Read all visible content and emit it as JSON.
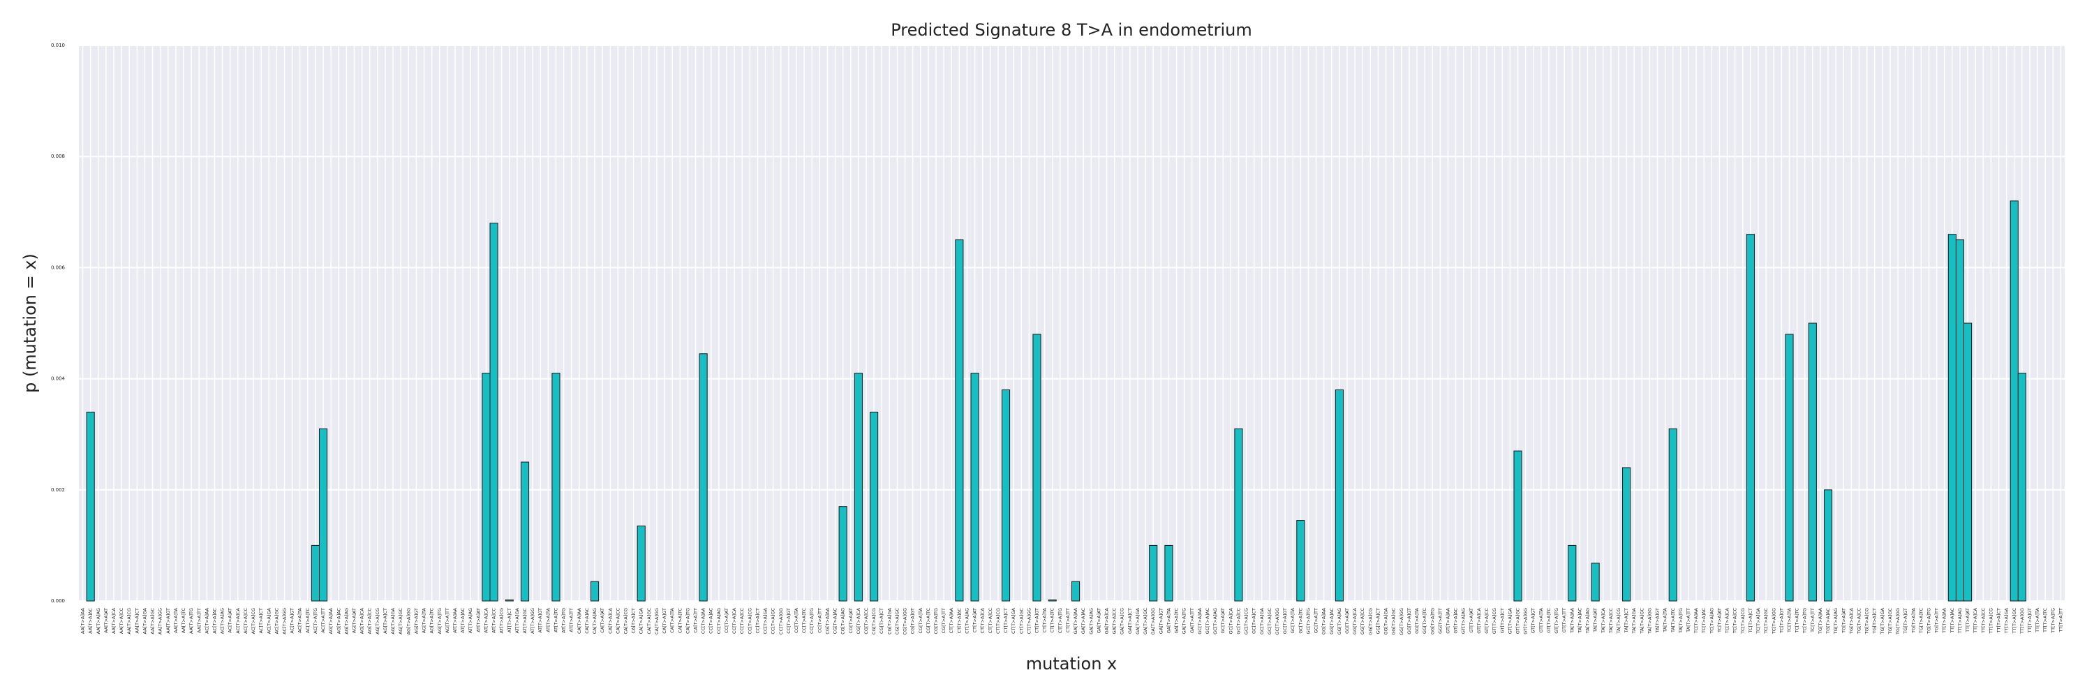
{
  "chart_data": {
    "type": "bar",
    "title": "Predicted Signature 8 T>A in endometrium",
    "xlabel": "mutation x",
    "ylabel": "p (mutation = x)",
    "color": "#17bec2",
    "grid": true,
    "ylim": [
      0,
      0.01
    ],
    "yticks": [
      {
        "value": 0,
        "label": "0.000"
      },
      {
        "value": 0.002,
        "label": "0.002"
      },
      {
        "value": 0.004,
        "label": "0.004"
      },
      {
        "value": 0.006,
        "label": "0.006"
      },
      {
        "value": 0.008,
        "label": "0.008"
      },
      {
        "value": 0.01,
        "label": "0.010"
      }
    ],
    "categories": [
      "AA[T>A]AA",
      "AA[T>A]AC",
      "AA[T>A]AG",
      "AA[T>A]AT",
      "AA[T>A]CA",
      "AA[T>A]CC",
      "AA[T>A]CG",
      "AA[T>A]CT",
      "AA[T>A]GA",
      "AA[T>A]GC",
      "AA[T>A]GG",
      "AA[T>A]GT",
      "AA[T>A]TA",
      "AA[T>A]TC",
      "AA[T>A]TG",
      "AA[T>A]TT",
      "AC[T>A]AA",
      "AC[T>A]AC",
      "AC[T>A]AG",
      "AC[T>A]AT",
      "AC[T>A]CA",
      "AC[T>A]CC",
      "AC[T>A]CG",
      "AC[T>A]CT",
      "AC[T>A]GA",
      "AC[T>A]GC",
      "AC[T>A]GG",
      "AC[T>A]GT",
      "AC[T>A]TA",
      "AC[T>A]TC",
      "AC[T>A]TG",
      "AC[T>A]TT",
      "AG[T>A]AA",
      "AG[T>A]AC",
      "AG[T>A]AG",
      "AG[T>A]AT",
      "AG[T>A]CA",
      "AG[T>A]CC",
      "AG[T>A]CG",
      "AG[T>A]CT",
      "AG[T>A]GA",
      "AG[T>A]GC",
      "AG[T>A]GG",
      "AG[T>A]GT",
      "AG[T>A]TA",
      "AG[T>A]TC",
      "AG[T>A]TG",
      "AG[T>A]TT",
      "AT[T>A]AA",
      "AT[T>A]AC",
      "AT[T>A]AG",
      "AT[T>A]AT",
      "AT[T>A]CA",
      "AT[T>A]CC",
      "AT[T>A]CG",
      "AT[T>A]CT",
      "AT[T>A]GA",
      "AT[T>A]GC",
      "AT[T>A]GG",
      "AT[T>A]GT",
      "AT[T>A]TA",
      "AT[T>A]TC",
      "AT[T>A]TG",
      "AT[T>A]TT",
      "CA[T>A]AA",
      "CA[T>A]AC",
      "CA[T>A]AG",
      "CA[T>A]AT",
      "CA[T>A]CA",
      "CA[T>A]CC",
      "CA[T>A]CG",
      "CA[T>A]CT",
      "CA[T>A]GA",
      "CA[T>A]GC",
      "CA[T>A]GG",
      "CA[T>A]GT",
      "CA[T>A]TA",
      "CA[T>A]TC",
      "CA[T>A]TG",
      "CA[T>A]TT",
      "CC[T>A]AA",
      "CC[T>A]AC",
      "CC[T>A]AG",
      "CC[T>A]AT",
      "CC[T>A]CA",
      "CC[T>A]CC",
      "CC[T>A]CG",
      "CC[T>A]CT",
      "CC[T>A]GA",
      "CC[T>A]GC",
      "CC[T>A]GG",
      "CC[T>A]GT",
      "CC[T>A]TA",
      "CC[T>A]TC",
      "CC[T>A]TG",
      "CC[T>A]TT",
      "CG[T>A]AA",
      "CG[T>A]AC",
      "CG[T>A]AG",
      "CG[T>A]AT",
      "CG[T>A]CA",
      "CG[T>A]CC",
      "CG[T>A]CG",
      "CG[T>A]CT",
      "CG[T>A]GA",
      "CG[T>A]GC",
      "CG[T>A]GG",
      "CG[T>A]GT",
      "CG[T>A]TA",
      "CG[T>A]TC",
      "CG[T>A]TG",
      "CG[T>A]TT",
      "CT[T>A]AA",
      "CT[T>A]AC",
      "CT[T>A]AG",
      "CT[T>A]AT",
      "CT[T>A]CA",
      "CT[T>A]CC",
      "CT[T>A]CG",
      "CT[T>A]CT",
      "CT[T>A]GA",
      "CT[T>A]GC",
      "CT[T>A]GG",
      "CT[T>A]GT",
      "CT[T>A]TA",
      "CT[T>A]TC",
      "CT[T>A]TG",
      "CT[T>A]TT",
      "GA[T>A]AA",
      "GA[T>A]AC",
      "GA[T>A]AG",
      "GA[T>A]AT",
      "GA[T>A]CA",
      "GA[T>A]CC",
      "GA[T>A]CG",
      "GA[T>A]CT",
      "GA[T>A]GA",
      "GA[T>A]GC",
      "GA[T>A]GG",
      "GA[T>A]GT",
      "GA[T>A]TA",
      "GA[T>A]TC",
      "GA[T>A]TG",
      "GA[T>A]TT",
      "GC[T>A]AA",
      "GC[T>A]AC",
      "GC[T>A]AG",
      "GC[T>A]AT",
      "GC[T>A]CA",
      "GC[T>A]CC",
      "GC[T>A]CG",
      "GC[T>A]CT",
      "GC[T>A]GA",
      "GC[T>A]GC",
      "GC[T>A]GG",
      "GC[T>A]GT",
      "GC[T>A]TA",
      "GC[T>A]TC",
      "GC[T>A]TG",
      "GC[T>A]TT",
      "GG[T>A]AA",
      "GG[T>A]AC",
      "GG[T>A]AG",
      "GG[T>A]AT",
      "GG[T>A]CA",
      "GG[T>A]CC",
      "GG[T>A]CG",
      "GG[T>A]CT",
      "GG[T>A]GA",
      "GG[T>A]GC",
      "GG[T>A]GG",
      "GG[T>A]GT",
      "GG[T>A]TA",
      "GG[T>A]TC",
      "GG[T>A]TG",
      "GG[T>A]TT",
      "GT[T>A]AA",
      "GT[T>A]AC",
      "GT[T>A]AG",
      "GT[T>A]AT",
      "GT[T>A]CA",
      "GT[T>A]CC",
      "GT[T>A]CG",
      "GT[T>A]CT",
      "GT[T>A]GA",
      "GT[T>A]GC",
      "GT[T>A]GG",
      "GT[T>A]GT",
      "GT[T>A]TA",
      "GT[T>A]TC",
      "GT[T>A]TG",
      "GT[T>A]TT",
      "TA[T>A]AA",
      "TA[T>A]AC",
      "TA[T>A]AG",
      "TA[T>A]AT",
      "TA[T>A]CA",
      "TA[T>A]CC",
      "TA[T>A]CG",
      "TA[T>A]CT",
      "TA[T>A]GA",
      "TA[T>A]GC",
      "TA[T>A]GG",
      "TA[T>A]GT",
      "TA[T>A]TA",
      "TA[T>A]TC",
      "TA[T>A]TG",
      "TA[T>A]TT",
      "TC[T>A]AA",
      "TC[T>A]AC",
      "TC[T>A]AG",
      "TC[T>A]AT",
      "TC[T>A]CA",
      "TC[T>A]CC",
      "TC[T>A]CG",
      "TC[T>A]CT",
      "TC[T>A]GA",
      "TC[T>A]GC",
      "TC[T>A]GG",
      "TC[T>A]GT",
      "TC[T>A]TA",
      "TC[T>A]TC",
      "TC[T>A]TG",
      "TC[T>A]TT",
      "TG[T>A]AA",
      "TG[T>A]AC",
      "TG[T>A]AG",
      "TG[T>A]AT",
      "TG[T>A]CA",
      "TG[T>A]CC",
      "TG[T>A]CG",
      "TG[T>A]CT",
      "TG[T>A]GA",
      "TG[T>A]GC",
      "TG[T>A]GG",
      "TG[T>A]GT",
      "TG[T>A]TA",
      "TG[T>A]TC",
      "TG[T>A]TG",
      "TG[T>A]TT",
      "TT[T>A]AA",
      "TT[T>A]AC",
      "TT[T>A]AG",
      "TT[T>A]AT",
      "TT[T>A]CA",
      "TT[T>A]CC",
      "TT[T>A]CG",
      "TT[T>A]CT",
      "TT[T>A]GA",
      "TT[T>A]GC",
      "TT[T>A]GG",
      "TT[T>A]GT",
      "TT[T>A]TA",
      "TT[T>A]TC",
      "TT[T>A]TG",
      "TT[T>A]TT"
    ],
    "values": [
      0,
      0.0034,
      0,
      0,
      0,
      0,
      0,
      0,
      0,
      0,
      0,
      0,
      0,
      0,
      0,
      0,
      0,
      0,
      0,
      0,
      0,
      0,
      0,
      0,
      0,
      0,
      0,
      0,
      0,
      0,
      0.001,
      0.0031,
      0,
      0,
      0,
      0,
      0,
      0,
      0,
      0,
      0,
      0,
      0,
      0,
      0,
      0,
      0,
      0,
      0,
      0,
      0,
      0,
      0.0041,
      0.0068,
      0,
      2e-05,
      0,
      0.0025,
      0,
      0,
      0,
      0.0041,
      0,
      0,
      0,
      0,
      0.00035,
      0,
      0,
      0,
      0,
      0,
      0.00135,
      0,
      0,
      0,
      0,
      0,
      0,
      0,
      0.00445,
      0,
      0,
      0,
      0,
      0,
      0,
      0,
      0,
      0,
      0,
      0,
      0,
      0,
      0,
      0,
      0,
      0,
      0.0017,
      0,
      0.0041,
      0,
      0.0034,
      0,
      0,
      0,
      0,
      0,
      0,
      0,
      0,
      0,
      0,
      0.0065,
      0,
      0.0041,
      0,
      0,
      0,
      0.0038,
      0,
      0,
      0,
      0.0048,
      0,
      2e-05,
      0,
      0,
      0.00035,
      0,
      0,
      0,
      0,
      0,
      0,
      0,
      0,
      0,
      0.001,
      0,
      0.001,
      0,
      0,
      0,
      0,
      0,
      0,
      0,
      0,
      0.0031,
      0,
      0,
      0,
      0,
      0,
      0,
      0,
      0.00145,
      0,
      0,
      0,
      0,
      0.0038,
      0,
      0,
      0,
      0,
      0,
      0,
      0,
      0,
      0,
      0,
      0,
      0,
      0,
      0,
      0,
      0,
      0,
      0,
      0,
      0,
      0,
      0,
      0.0027,
      0,
      0,
      0,
      0,
      0,
      0,
      0.001,
      0,
      0,
      0.00068,
      0,
      0,
      0,
      0.0024,
      0,
      0,
      0,
      0,
      0,
      0.0031,
      0,
      0,
      0,
      0,
      0,
      0,
      0,
      0,
      0,
      0.0066,
      0,
      0,
      0,
      0,
      0.0048,
      0,
      0,
      0.005,
      0,
      0.002,
      0,
      0,
      0,
      0,
      0,
      0,
      0,
      0,
      0,
      0,
      0,
      0,
      0,
      0,
      0,
      0.0066,
      0.0065,
      0.005,
      0,
      0,
      0,
      0,
      0,
      0.0072,
      0.0041,
      0,
      0,
      0,
      0,
      0
    ]
  }
}
